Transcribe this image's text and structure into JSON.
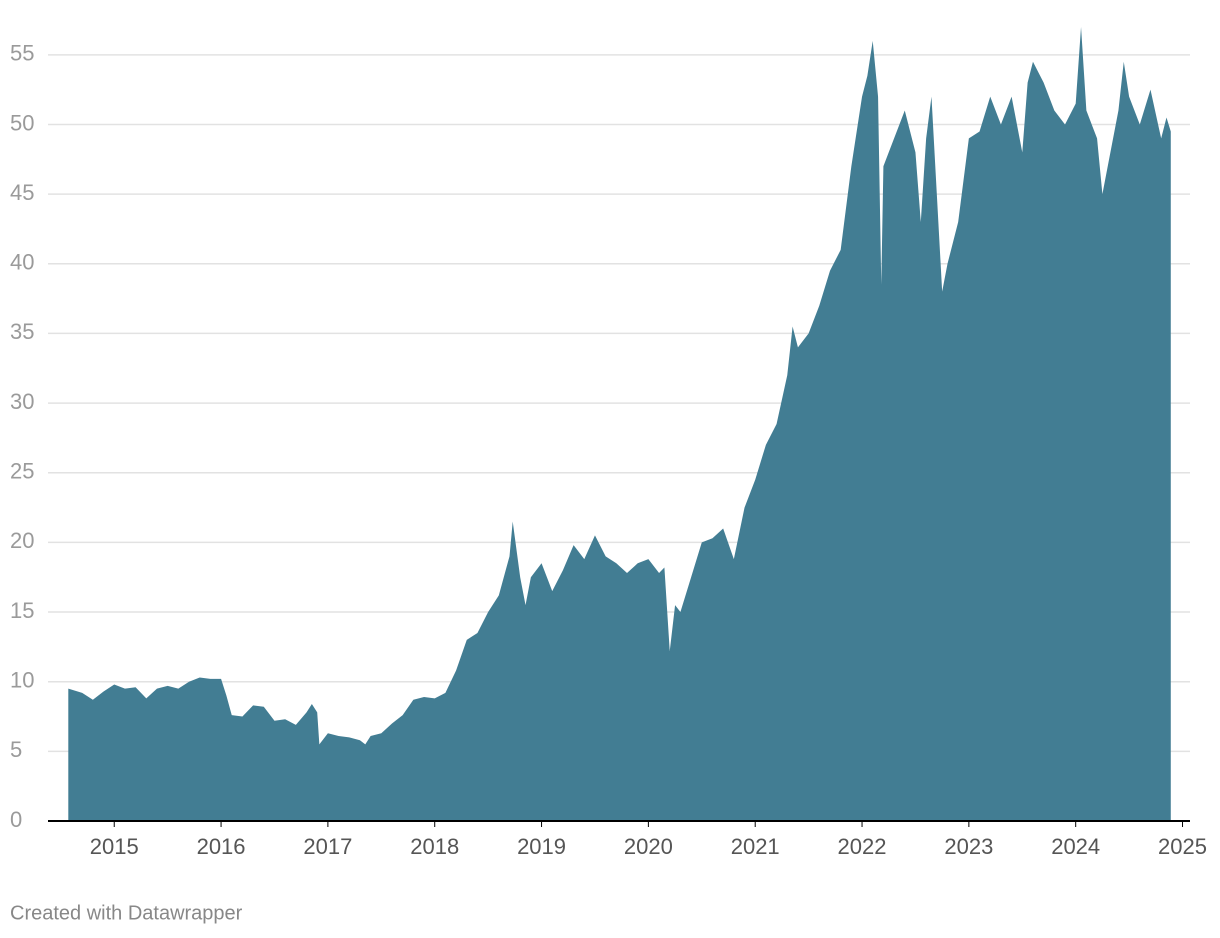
{
  "chart_data": {
    "type": "area",
    "color": "#427d93",
    "grid": true,
    "credit": "Created with Datawrapper",
    "xlim": [
      2014.38,
      2025.07
    ],
    "xticks": [
      2015,
      2016,
      2017,
      2018,
      2019,
      2020,
      2021,
      2022,
      2023,
      2024,
      2025
    ],
    "ylim": [
      0,
      57.5
    ],
    "yticks": [
      0,
      5,
      10,
      15,
      20,
      25,
      30,
      35,
      40,
      45,
      50,
      55
    ],
    "x": [
      2014.57,
      2014.7,
      2014.8,
      2014.9,
      2015.0,
      2015.1,
      2015.2,
      2015.3,
      2015.4,
      2015.5,
      2015.6,
      2015.7,
      2015.8,
      2015.9,
      2016.0,
      2016.05,
      2016.1,
      2016.2,
      2016.3,
      2016.4,
      2016.5,
      2016.6,
      2016.7,
      2016.8,
      2016.85,
      2016.9,
      2016.92,
      2017.0,
      2017.1,
      2017.2,
      2017.3,
      2017.35,
      2017.4,
      2017.5,
      2017.6,
      2017.7,
      2017.8,
      2017.9,
      2018.0,
      2018.1,
      2018.2,
      2018.3,
      2018.4,
      2018.5,
      2018.6,
      2018.7,
      2018.73,
      2018.8,
      2018.85,
      2018.9,
      2019.0,
      2019.1,
      2019.2,
      2019.3,
      2019.4,
      2019.5,
      2019.6,
      2019.7,
      2019.8,
      2019.9,
      2020.0,
      2020.1,
      2020.15,
      2020.2,
      2020.25,
      2020.3,
      2020.4,
      2020.5,
      2020.6,
      2020.7,
      2020.8,
      2020.9,
      2021.0,
      2021.1,
      2021.2,
      2021.3,
      2021.35,
      2021.4,
      2021.5,
      2021.6,
      2021.7,
      2021.8,
      2021.9,
      2022.0,
      2022.05,
      2022.1,
      2022.15,
      2022.18,
      2022.2,
      2022.3,
      2022.4,
      2022.5,
      2022.55,
      2022.6,
      2022.65,
      2022.7,
      2022.75,
      2022.8,
      2022.9,
      2023.0,
      2023.1,
      2023.2,
      2023.3,
      2023.4,
      2023.5,
      2023.55,
      2023.6,
      2023.7,
      2023.8,
      2023.9,
      2024.0,
      2024.05,
      2024.1,
      2024.2,
      2024.25,
      2024.3,
      2024.4,
      2024.45,
      2024.5,
      2024.6,
      2024.7,
      2024.8,
      2024.85,
      2024.89
    ],
    "values": [
      9.5,
      9.2,
      8.7,
      9.3,
      9.8,
      9.5,
      9.6,
      8.8,
      9.5,
      9.7,
      9.5,
      10.0,
      10.3,
      10.2,
      10.2,
      9.0,
      7.6,
      7.5,
      8.3,
      8.2,
      7.2,
      7.3,
      6.9,
      7.8,
      8.4,
      7.8,
      5.5,
      6.3,
      6.1,
      6.0,
      5.8,
      5.5,
      6.1,
      6.3,
      7.0,
      7.6,
      8.7,
      8.9,
      8.8,
      9.2,
      10.8,
      13.0,
      13.5,
      15.0,
      16.2,
      19.0,
      21.5,
      17.5,
      15.5,
      17.5,
      18.5,
      16.5,
      18.0,
      19.8,
      18.8,
      20.5,
      19.0,
      18.5,
      17.8,
      18.5,
      18.8,
      17.8,
      18.2,
      12.2,
      15.5,
      15.0,
      17.5,
      20.0,
      20.3,
      21.0,
      18.8,
      22.5,
      24.5,
      27.0,
      28.5,
      32.0,
      35.5,
      34.0,
      35.0,
      37.0,
      39.5,
      41.0,
      47.0,
      52.0,
      53.5,
      56.0,
      52.0,
      38.5,
      47.0,
      49.0,
      51.0,
      48.0,
      43.0,
      49.0,
      52.0,
      45.0,
      38.0,
      40.0,
      43.0,
      49.0,
      49.5,
      52.0,
      50.0,
      52.0,
      48.0,
      53.0,
      54.5,
      53.0,
      51.0,
      50.0,
      51.5,
      57.0,
      51.0,
      49.0,
      45.0,
      47.0,
      51.0,
      54.5,
      52.0,
      50.0,
      52.5,
      49.0,
      50.5,
      49.5
    ]
  }
}
